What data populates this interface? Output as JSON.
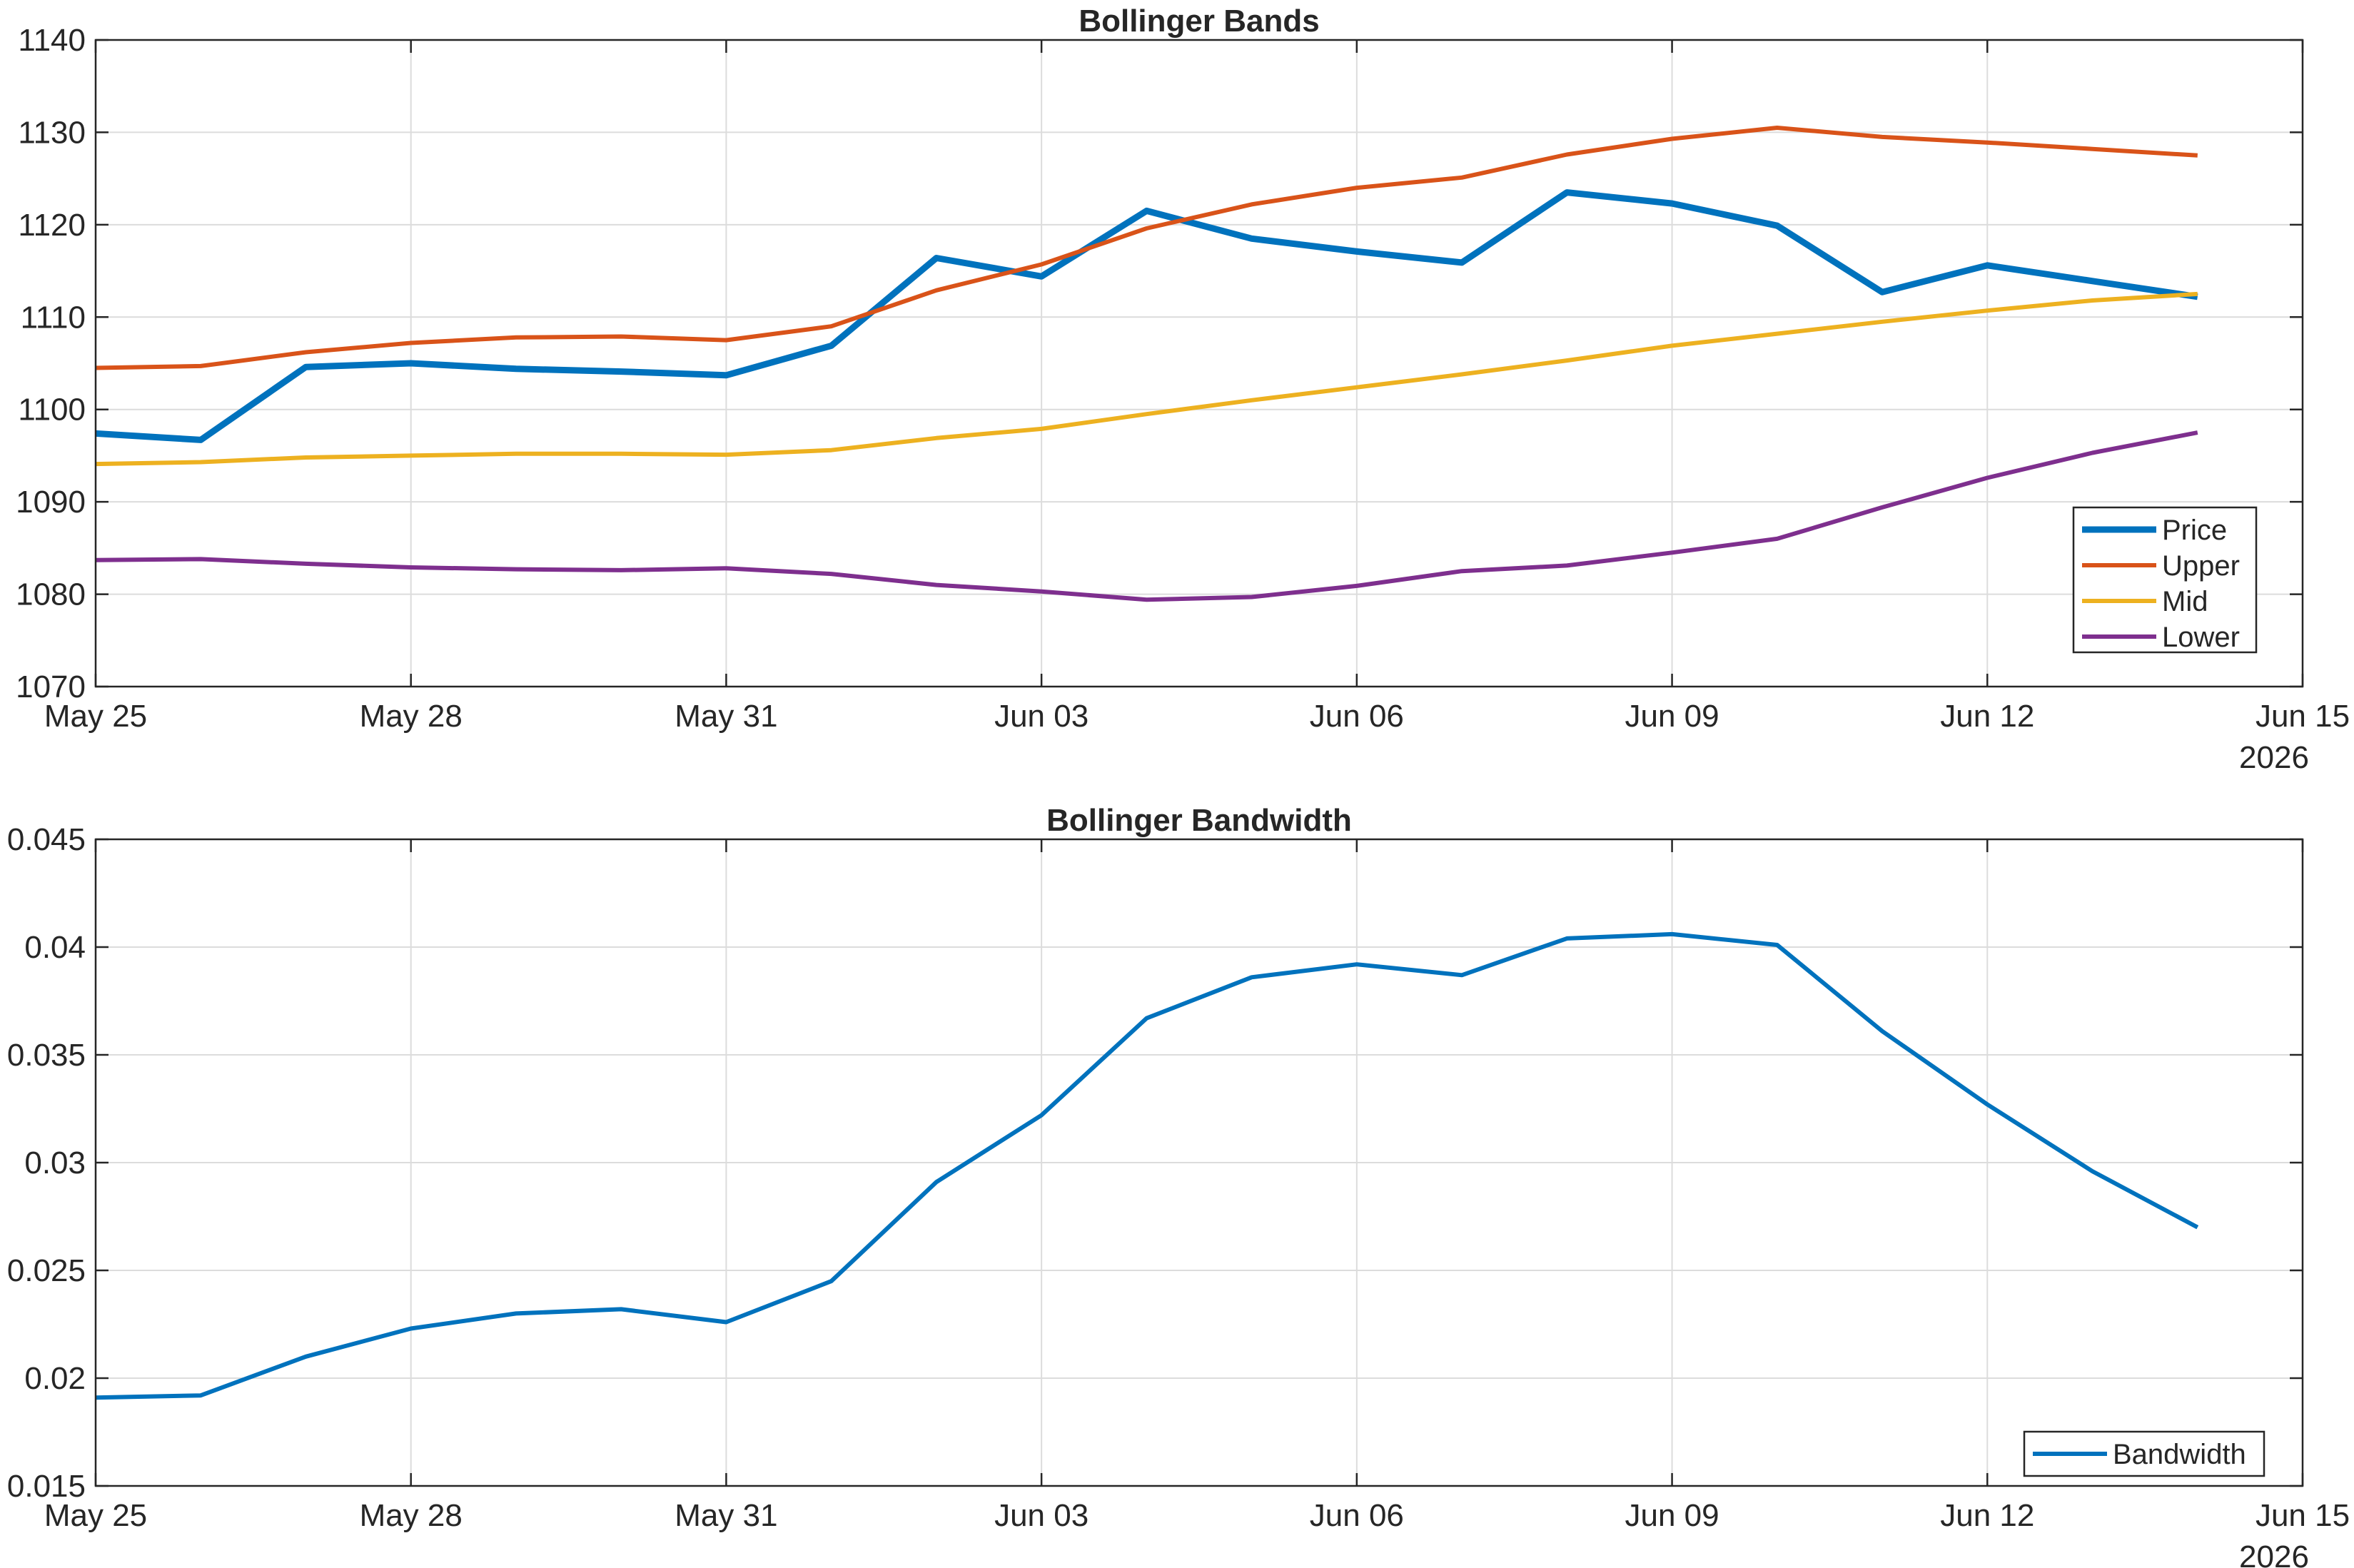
{
  "chart_data": [
    {
      "type": "line",
      "title": "Bollinger Bands",
      "xlabel": "",
      "ylabel": "",
      "x_dates": [
        "2026-05-25",
        "2026-05-26",
        "2026-05-27",
        "2026-05-28",
        "2026-05-29",
        "2026-05-30",
        "2026-05-31",
        "2026-06-01",
        "2026-06-02",
        "2026-06-03",
        "2026-06-04",
        "2026-06-05",
        "2026-06-06",
        "2026-06-07",
        "2026-06-08",
        "2026-06-09",
        "2026-06-10",
        "2026-06-11",
        "2026-06-12",
        "2026-06-13",
        "2026-06-14"
      ],
      "xlim": [
        "2026-05-25",
        "2026-06-15"
      ],
      "x_ticks": [
        "2026-05-25",
        "2026-05-28",
        "2026-05-31",
        "2026-06-03",
        "2026-06-06",
        "2026-06-09",
        "2026-06-12",
        "2026-06-15"
      ],
      "x_tick_labels": [
        "May 25",
        "May 28",
        "May 31",
        "Jun 03",
        "Jun 06",
        "Jun 09",
        "Jun 12",
        "Jun 15"
      ],
      "x_secondary_label": "2026",
      "ylim": [
        1070,
        1140
      ],
      "y_ticks": [
        1070,
        1080,
        1090,
        1100,
        1110,
        1120,
        1130,
        1140
      ],
      "y_tick_labels": [
        "1070",
        "1080",
        "1090",
        "1100",
        "1110",
        "1120",
        "1130",
        "1140"
      ],
      "grid": true,
      "legend_position": "bottom-right",
      "series": [
        {
          "name": "Price",
          "color": "#0072BD",
          "line_width": "thick",
          "values": [
            1097.4,
            1096.7,
            1104.6,
            1105.0,
            1104.4,
            1104.1,
            1103.7,
            1106.9,
            1116.4,
            1114.4,
            1121.5,
            1118.5,
            1117.1,
            1115.9,
            1123.5,
            1122.3,
            1119.9,
            1112.7,
            1115.6,
            1113.9,
            1112.2
          ]
        },
        {
          "name": "Upper",
          "color": "#D95319",
          "line_width": "normal",
          "values": [
            1104.5,
            1104.7,
            1106.2,
            1107.2,
            1107.8,
            1107.9,
            1107.5,
            1109.0,
            1112.9,
            1115.7,
            1119.6,
            1122.2,
            1124.0,
            1125.1,
            1127.6,
            1129.3,
            1130.5,
            1129.5,
            1128.9,
            1128.2,
            1127.5
          ]
        },
        {
          "name": "Mid",
          "color": "#EDB120",
          "line_width": "normal",
          "values": [
            1094.1,
            1094.3,
            1094.8,
            1095.0,
            1095.2,
            1095.2,
            1095.1,
            1095.6,
            1096.9,
            1097.9,
            1099.5,
            1101.0,
            1102.4,
            1103.8,
            1105.3,
            1106.9,
            1108.2,
            1109.5,
            1110.7,
            1111.8,
            1112.5
          ]
        },
        {
          "name": "Lower",
          "color": "#7E2F8E",
          "line_width": "normal",
          "values": [
            1083.7,
            1083.8,
            1083.3,
            1082.9,
            1082.7,
            1082.6,
            1082.8,
            1082.2,
            1081.0,
            1080.3,
            1079.4,
            1079.7,
            1080.9,
            1082.5,
            1083.1,
            1084.5,
            1086.0,
            1089.4,
            1092.6,
            1095.3,
            1097.5
          ]
        }
      ]
    },
    {
      "type": "line",
      "title": "Bollinger Bandwidth",
      "xlabel": "",
      "ylabel": "",
      "x_dates": [
        "2026-05-25",
        "2026-05-26",
        "2026-05-27",
        "2026-05-28",
        "2026-05-29",
        "2026-05-30",
        "2026-05-31",
        "2026-06-01",
        "2026-06-02",
        "2026-06-03",
        "2026-06-04",
        "2026-06-05",
        "2026-06-06",
        "2026-06-07",
        "2026-06-08",
        "2026-06-09",
        "2026-06-10",
        "2026-06-11",
        "2026-06-12",
        "2026-06-13",
        "2026-06-14"
      ],
      "xlim": [
        "2026-05-25",
        "2026-06-15"
      ],
      "x_ticks": [
        "2026-05-25",
        "2026-05-28",
        "2026-05-31",
        "2026-06-03",
        "2026-06-06",
        "2026-06-09",
        "2026-06-12",
        "2026-06-15"
      ],
      "x_tick_labels": [
        "May 25",
        "May 28",
        "May 31",
        "Jun 03",
        "Jun 06",
        "Jun 09",
        "Jun 12",
        "Jun 15"
      ],
      "x_secondary_label": "2026",
      "ylim": [
        0.015,
        0.045
      ],
      "y_ticks": [
        0.015,
        0.02,
        0.025,
        0.03,
        0.035,
        0.04,
        0.045
      ],
      "y_tick_labels": [
        "0.015",
        "0.02",
        "0.025",
        "0.03",
        "0.035",
        "0.04",
        "0.045"
      ],
      "grid": true,
      "legend_position": "bottom-right",
      "series": [
        {
          "name": "Bandwidth",
          "color": "#0072BD",
          "line_width": "normal",
          "values": [
            0.0191,
            0.0192,
            0.021,
            0.0223,
            0.023,
            0.0232,
            0.0226,
            0.0245,
            0.0291,
            0.0322,
            0.0367,
            0.0386,
            0.0392,
            0.0387,
            0.0404,
            0.0406,
            0.0401,
            0.0361,
            0.0327,
            0.0296,
            0.027
          ]
        }
      ]
    }
  ]
}
